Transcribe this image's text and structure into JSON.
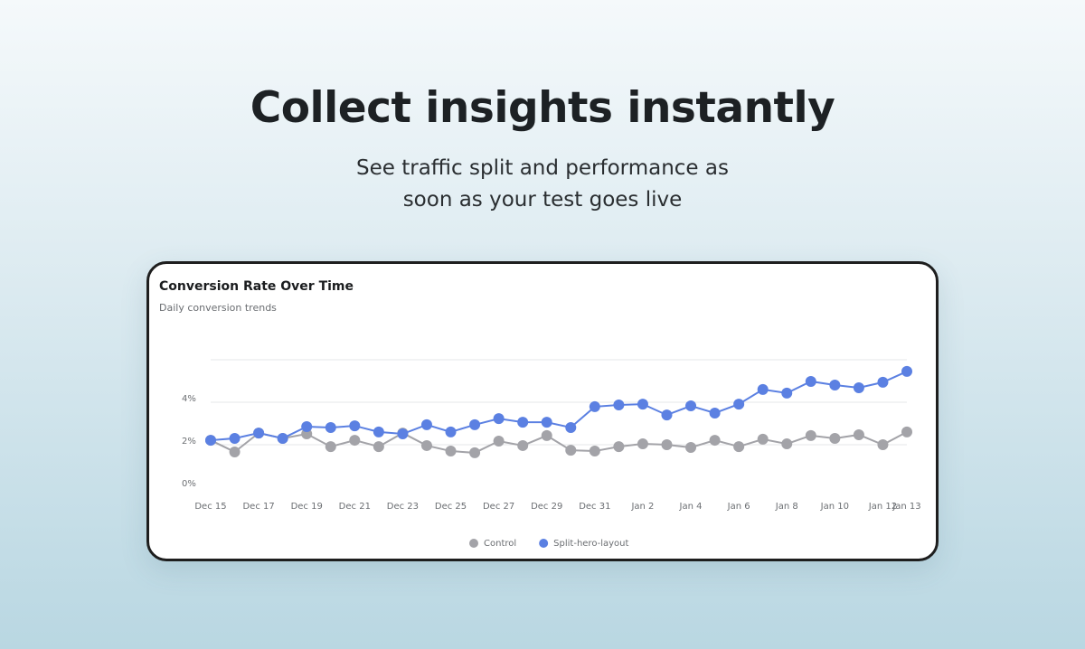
{
  "header": {
    "title": "Collect insights instantly",
    "subtitle_lines": [
      "See traffic split and performance as",
      "soon as your test goes live"
    ]
  },
  "chart_data": {
    "type": "line",
    "title": "Conversion Rate Over Time",
    "subtitle": "Daily conversion trends",
    "categories": [
      "Dec 15",
      null,
      "Dec 17",
      null,
      "Dec 19",
      null,
      "Dec 21",
      null,
      "Dec 23",
      null,
      "Dec 25",
      null,
      "Dec 27",
      null,
      "Dec 29",
      null,
      "Dec 31",
      null,
      "Jan 2",
      null,
      "Jan 4",
      null,
      "Jan 6",
      null,
      "Jan 8",
      null,
      "Jan 10",
      null,
      "Jan 12",
      "Jan 13"
    ],
    "series": [
      {
        "name": "Control",
        "color": "#a3a3a8",
        "values": [
          2.21,
          1.66,
          2.55,
          2.3,
          2.51,
          1.91,
          2.21,
          1.91,
          2.55,
          1.96,
          1.7,
          1.62,
          2.17,
          1.96,
          2.43,
          1.74,
          1.7,
          1.91,
          2.04,
          2.0,
          1.87,
          2.21,
          1.91,
          2.26,
          2.04,
          2.43,
          2.3,
          2.47,
          2.0,
          2.6
        ]
      },
      {
        "name": "Split-hero-layout",
        "color": "#5b80e2",
        "values": [
          2.21,
          2.3,
          2.55,
          2.3,
          2.85,
          2.81,
          2.89,
          2.6,
          2.51,
          2.94,
          2.6,
          2.94,
          3.23,
          3.06,
          3.06,
          2.81,
          3.79,
          3.87,
          3.91,
          3.4,
          3.83,
          3.49,
          3.91,
          4.6,
          4.43,
          4.98,
          4.81,
          4.68,
          4.94,
          5.45
        ]
      }
    ],
    "ylim": [
      0,
      6
    ],
    "yticks": [
      {
        "value": 0,
        "label": "0%"
      },
      {
        "value": 2,
        "label": "2%"
      },
      {
        "value": 4,
        "label": "4%"
      }
    ],
    "grid": true,
    "legend": "bottom"
  }
}
